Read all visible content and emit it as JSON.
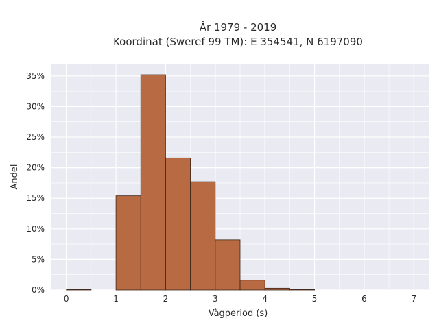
{
  "chart_data": {
    "type": "bar",
    "title": "År 1979 - 2019",
    "subtitle": "Koordinat (Sweref 99 TM): E 354541, N 6197090",
    "xlabel": "Vågperiod (s)",
    "ylabel": "Andel",
    "xlim": [
      -0.3,
      7.3
    ],
    "ylim": [
      0,
      0.37
    ],
    "x_ticks": [
      0,
      1,
      2,
      3,
      4,
      5,
      6,
      7
    ],
    "x_tick_labels": [
      "0",
      "1",
      "2",
      "3",
      "4",
      "5",
      "6",
      "7"
    ],
    "y_ticks": [
      0,
      0.05,
      0.1,
      0.15,
      0.2,
      0.25,
      0.3,
      0.35
    ],
    "y_tick_labels": [
      "0%",
      "5%",
      "10%",
      "15%",
      "20%",
      "25%",
      "30%",
      "35%"
    ],
    "bin_width": 0.5,
    "bins": [
      {
        "start": 0.0,
        "end": 0.5,
        "value": 0.001
      },
      {
        "start": 0.5,
        "end": 1.0,
        "value": 0.0
      },
      {
        "start": 1.0,
        "end": 1.5,
        "value": 0.154
      },
      {
        "start": 1.5,
        "end": 2.0,
        "value": 0.352
      },
      {
        "start": 2.0,
        "end": 2.5,
        "value": 0.216
      },
      {
        "start": 2.5,
        "end": 3.0,
        "value": 0.177
      },
      {
        "start": 3.0,
        "end": 3.5,
        "value": 0.082
      },
      {
        "start": 3.5,
        "end": 4.0,
        "value": 0.016
      },
      {
        "start": 4.0,
        "end": 4.5,
        "value": 0.003
      },
      {
        "start": 4.5,
        "end": 5.0,
        "value": 0.001
      }
    ],
    "grid": true,
    "colors": {
      "bar_fill": "#b86a42",
      "bar_edge": "#3a2418",
      "plot_bg": "#eaeaf2",
      "grid": "#ffffff"
    }
  }
}
